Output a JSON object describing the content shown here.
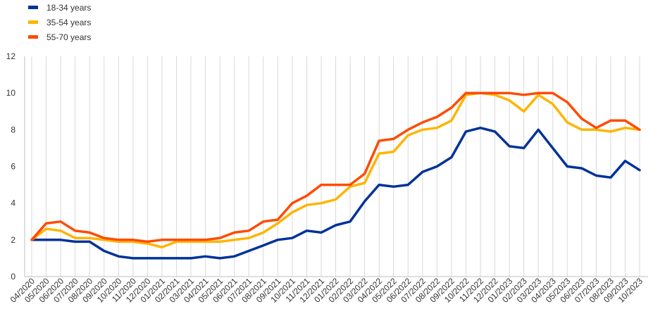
{
  "chart_data": {
    "type": "line",
    "title": "",
    "xlabel": "",
    "ylabel": "",
    "ylim": [
      0,
      12
    ],
    "yticks": [
      0,
      2,
      4,
      6,
      8,
      10,
      12
    ],
    "grid": "vertical",
    "legend_position": "top-left",
    "categories": [
      "04/2020",
      "05/2020",
      "06/2020",
      "07/2020",
      "08/2020",
      "09/2020",
      "10/2020",
      "11/2020",
      "12/2020",
      "01/2021",
      "02/2021",
      "03/2021",
      "04/2021",
      "05/2021",
      "06/2021",
      "07/2021",
      "08/2021",
      "09/2021",
      "10/2021",
      "11/2021",
      "12/2021",
      "01/2022",
      "02/2022",
      "03/2022",
      "04/2022",
      "05/2022",
      "06/2022",
      "07/2022",
      "08/2022",
      "09/2022",
      "10/2022",
      "11/2022",
      "12/2022",
      "01/2023",
      "02/2023",
      "03/2023",
      "04/2023",
      "05/2023",
      "06/2023",
      "07/2023",
      "08/2023",
      "09/2023",
      "10/2023"
    ],
    "series": [
      {
        "name": "18-34 years",
        "color": "#003299",
        "values": [
          2.0,
          2.0,
          2.0,
          1.9,
          1.9,
          1.4,
          1.1,
          1.0,
          1.0,
          1.0,
          1.0,
          1.0,
          1.1,
          1.0,
          1.1,
          1.4,
          1.7,
          2.0,
          2.1,
          2.5,
          2.4,
          2.8,
          3.0,
          4.1,
          5.0,
          4.9,
          5.0,
          5.7,
          6.0,
          6.5,
          7.9,
          8.1,
          7.9,
          7.1,
          7.0,
          8.0,
          7.0,
          6.0,
          5.9,
          5.5,
          5.4,
          6.3,
          5.8
        ]
      },
      {
        "name": "35-54 years",
        "color": "#FFB400",
        "values": [
          2.0,
          2.6,
          2.5,
          2.1,
          2.1,
          2.0,
          1.9,
          1.9,
          1.8,
          1.6,
          1.9,
          1.9,
          1.9,
          1.9,
          2.0,
          2.1,
          2.4,
          2.9,
          3.5,
          3.9,
          4.0,
          4.2,
          4.9,
          5.1,
          6.7,
          6.8,
          7.7,
          8.0,
          8.1,
          8.5,
          9.9,
          10.0,
          9.9,
          9.6,
          9.0,
          9.9,
          9.4,
          8.4,
          8.0,
          8.0,
          7.9,
          8.1,
          8.0
        ]
      },
      {
        "name": "55-70 years",
        "color": "#FF4B00",
        "values": [
          2.0,
          2.9,
          3.0,
          2.5,
          2.4,
          2.1,
          2.0,
          2.0,
          1.9,
          2.0,
          2.0,
          2.0,
          2.0,
          2.1,
          2.4,
          2.5,
          3.0,
          3.1,
          4.0,
          4.4,
          5.0,
          5.0,
          5.0,
          5.6,
          7.4,
          7.5,
          8.0,
          8.4,
          8.7,
          9.2,
          10.0,
          10.0,
          10.0,
          10.0,
          9.9,
          10.0,
          10.0,
          9.5,
          8.6,
          8.1,
          8.5,
          8.5,
          8.0
        ]
      }
    ]
  }
}
